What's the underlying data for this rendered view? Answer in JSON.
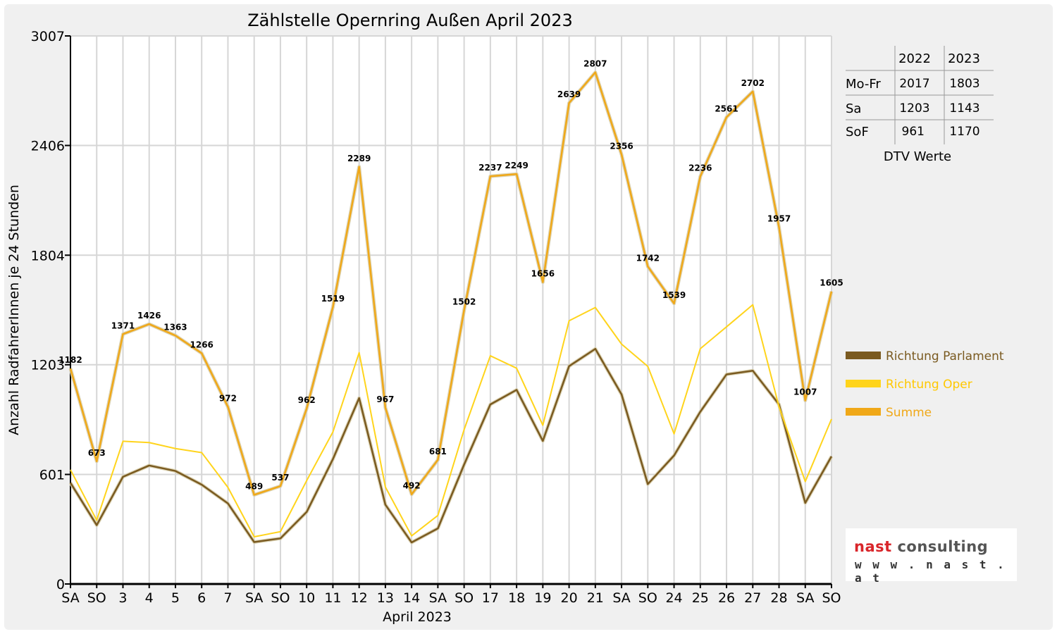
{
  "chart_data": {
    "type": "line",
    "title": "Zählstelle Opernring Außen April 2023",
    "xlabel": "April 2023",
    "ylabel": "Anzahl RadfahrerInnen je 24 Stunden",
    "ylim": [
      0,
      3007
    ],
    "yticks": [
      "0",
      "601",
      "1203",
      "1804",
      "2406",
      "3007"
    ],
    "ytick_values": [
      0,
      601,
      1203,
      1804,
      2406,
      3007
    ],
    "grid": true,
    "categories": [
      "SA",
      "SO",
      "3",
      "4",
      "5",
      "6",
      "7",
      "SA",
      "SO",
      "10",
      "11",
      "12",
      "13",
      "14",
      "SA",
      "SO",
      "17",
      "18",
      "19",
      "20",
      "21",
      "SA",
      "SO",
      "24",
      "25",
      "26",
      "27",
      "28",
      "SA",
      "SO"
    ],
    "red_categories": [
      1,
      8,
      9,
      15,
      22,
      29
    ],
    "series": [
      {
        "name": "Richtung Parlament",
        "color": "#7a5a20",
        "values": [
          555,
          323,
          588,
          650,
          620,
          545,
          442,
          230,
          250,
          395,
          685,
          1020,
          435,
          228,
          305,
          655,
          985,
          1065,
          785,
          1195,
          1290,
          1040,
          548,
          705,
          945,
          1150,
          1170,
          985,
          445,
          700
        ]
      },
      {
        "name": "Richtung Oper",
        "color": "#ffd41c",
        "values": [
          627,
          350,
          783,
          776,
          743,
          721,
          530,
          259,
          287,
          567,
          834,
          1269,
          532,
          264,
          376,
          847,
          1252,
          1184,
          871,
          1444,
          1517,
          1316,
          1194,
          824,
          1291,
          1411,
          1532,
          972,
          562,
          905
        ]
      },
      {
        "name": "Summe",
        "color": "#f0a818",
        "values": [
          1182,
          673,
          1371,
          1426,
          1363,
          1266,
          972,
          489,
          537,
          962,
          1519,
          2289,
          967,
          492,
          681,
          1502,
          2237,
          2249,
          1656,
          2639,
          2807,
          2356,
          1742,
          1539,
          2236,
          2561,
          2702,
          1957,
          1007,
          1605
        ]
      }
    ],
    "data_labels": [
      "1182",
      "673",
      "1371",
      "1426",
      "1363",
      "1266",
      "972",
      "489",
      "537",
      "962",
      "1519",
      "2289",
      "967",
      "492",
      "681",
      "1502",
      "2237",
      "2249",
      "1656",
      "2639",
      "2807",
      "2356",
      "1742",
      "1539",
      "2236",
      "2561",
      "2702",
      "1957",
      "1007",
      "1605"
    ],
    "legend_position": "right"
  },
  "dtv_table": {
    "headers": [
      "2022",
      "2023"
    ],
    "rows": [
      {
        "label": "Mo-Fr",
        "v2022": "2017",
        "v2023": "1803"
      },
      {
        "label": "Sa",
        "v2022": "1203",
        "v2023": "1143"
      },
      {
        "label": "SoF",
        "v2022": "961",
        "v2023": "1170"
      }
    ],
    "caption": "DTV Werte"
  },
  "logo": {
    "brand": "nast",
    "brand_rest": " consulting",
    "url": "w w w . n a s t . a t"
  },
  "colors": {
    "grid": "#d6d6d6",
    "red_label": "#e00000",
    "frame": "#f0f0f0"
  }
}
